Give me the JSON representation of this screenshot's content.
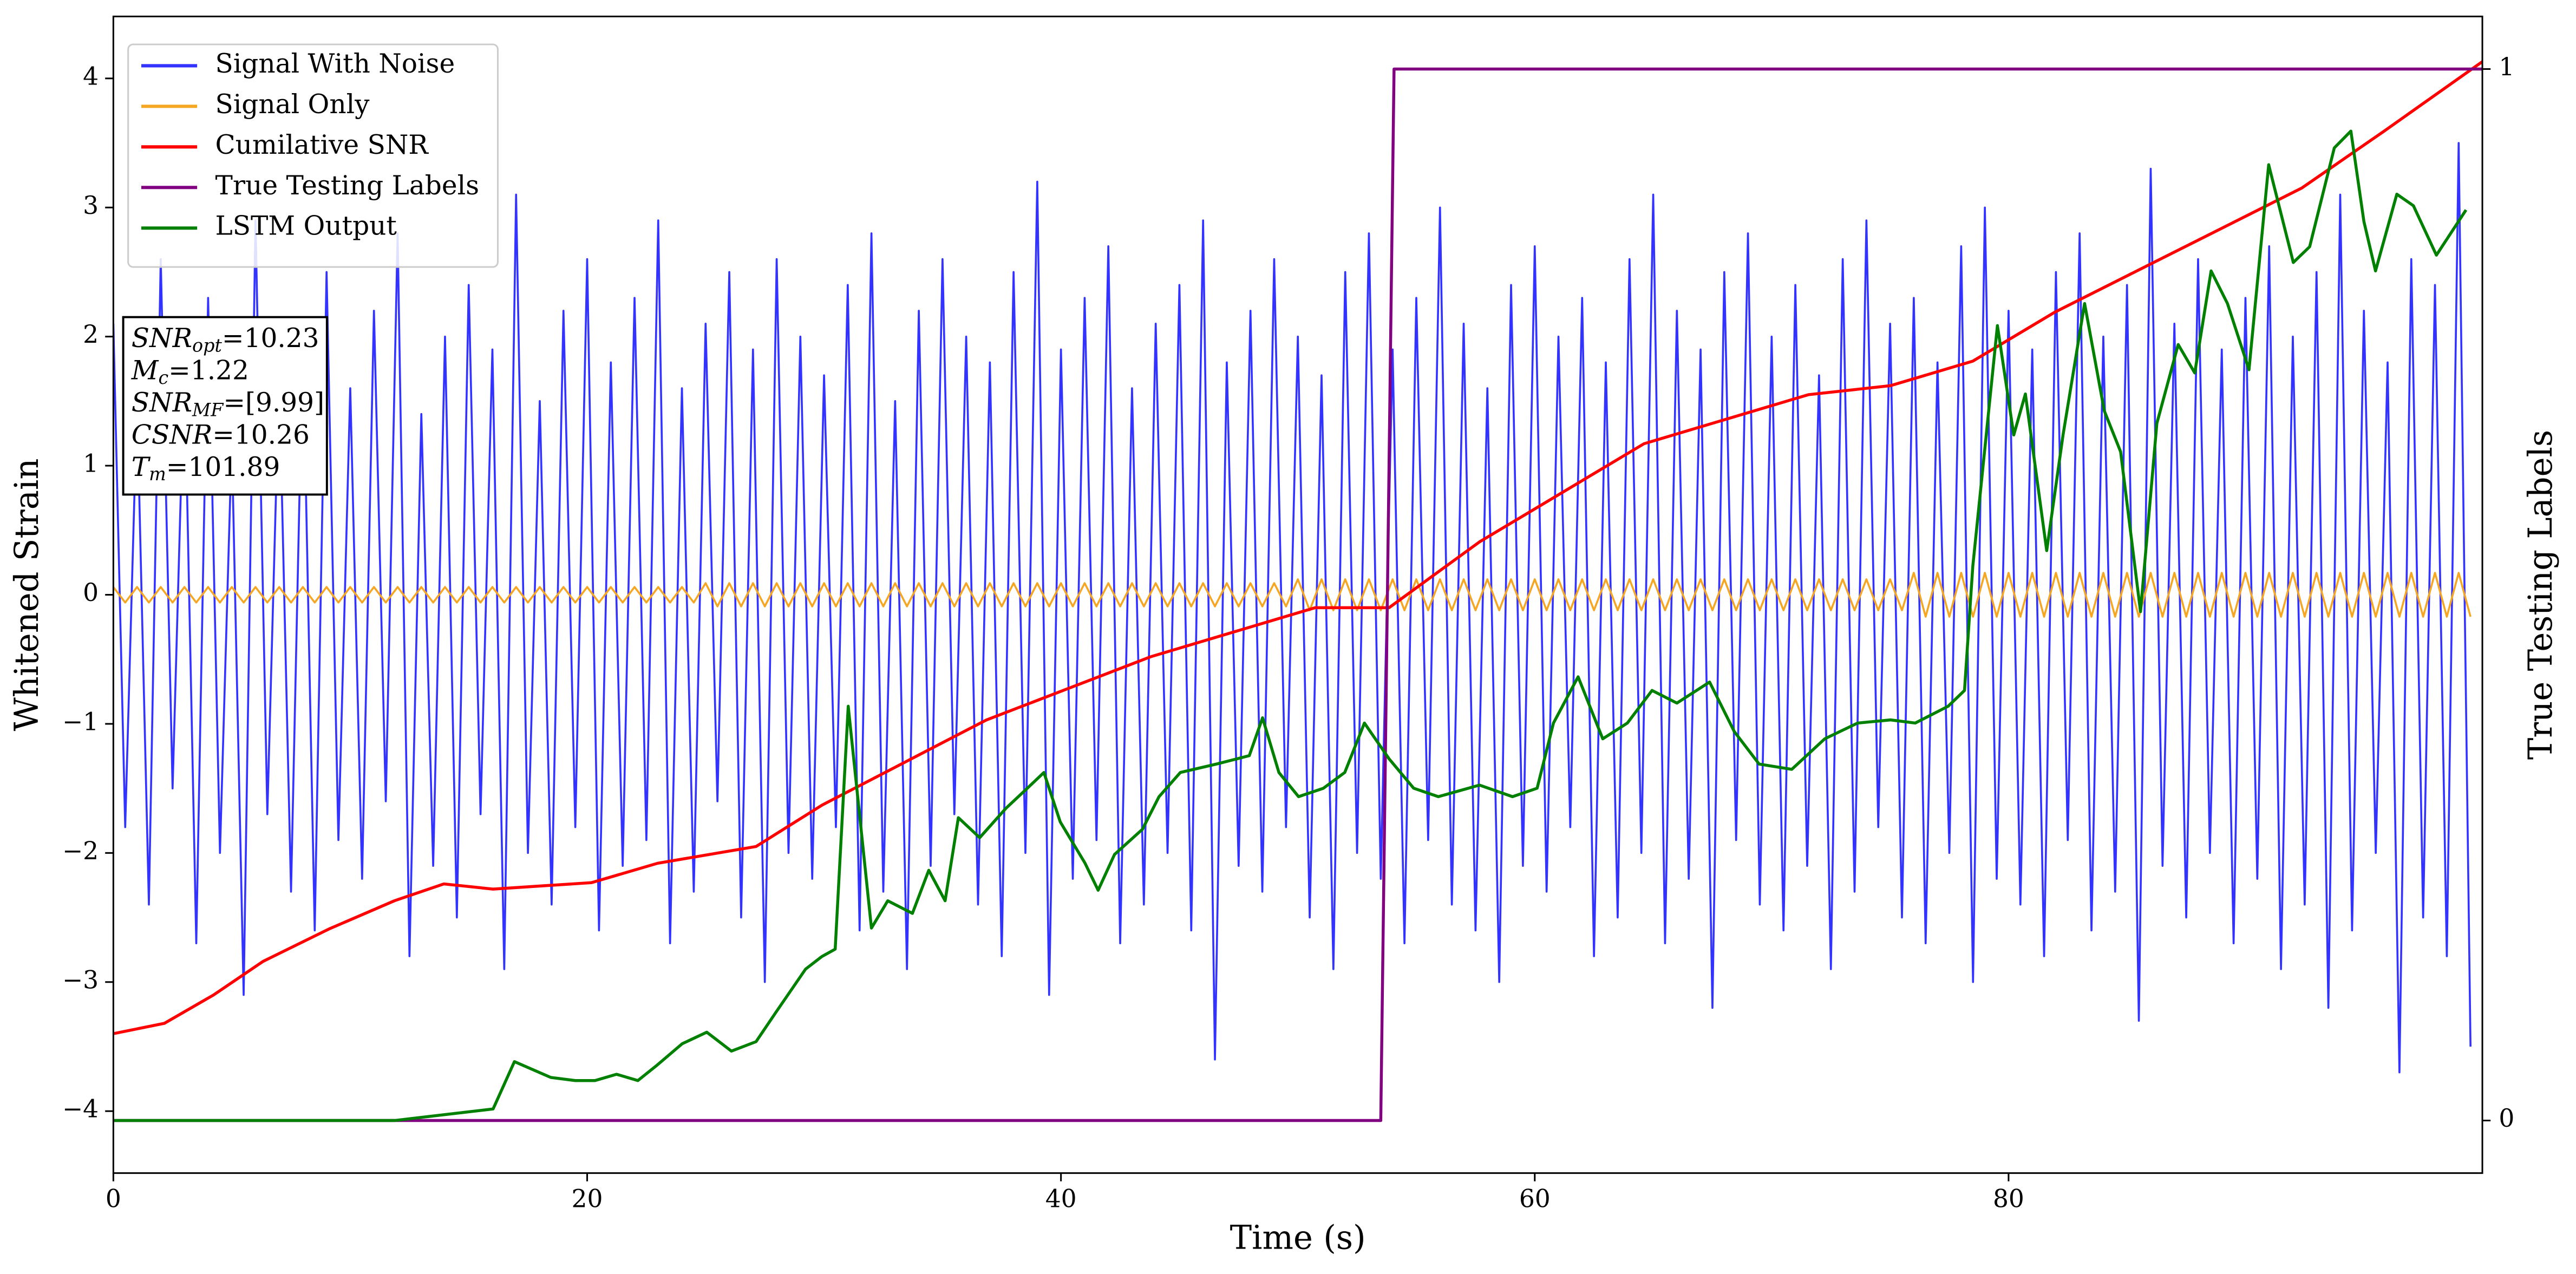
{
  "chart_data": {
    "type": "line",
    "xlabel": "Time (s)",
    "ylabel": "Whitened Strain",
    "y2label": "True Testing Labels",
    "xlim": [
      0,
      100
    ],
    "ylim": [
      -4.48,
      4.48
    ],
    "y2lim": [
      -0.05,
      1.05
    ],
    "xticks": [
      0,
      20,
      40,
      60,
      80
    ],
    "yticks": [
      {
        "value": -4,
        "label": "−4"
      },
      {
        "value": -3,
        "label": "−3"
      },
      {
        "value": -2,
        "label": "−2"
      },
      {
        "value": -1,
        "label": "−1"
      },
      0,
      1,
      2,
      3,
      4
    ],
    "y2ticks": [
      0,
      1
    ],
    "grid": false,
    "legend": "upper left",
    "annotation": [
      {
        "symbol": "SNR",
        "subscript": "opt",
        "text": "=10.23"
      },
      {
        "symbol": "M",
        "subscript": "c",
        "text": "=1.22"
      },
      {
        "symbol": "SNR",
        "subscript": "MF",
        "text": "=[9.99]"
      },
      {
        "symbol": "CSNR",
        "subscript": "",
        "text": "=10.26"
      },
      {
        "symbol": "T",
        "subscript": "m",
        "text": "=101.89"
      }
    ],
    "x": [
      0,
      0.5,
      1,
      1.5,
      2,
      2.5,
      3,
      3.5,
      4,
      4.5,
      5,
      5.5,
      6,
      6.5,
      7,
      7.5,
      8,
      8.5,
      9,
      9.5,
      10,
      10.5,
      11,
      11.5,
      12,
      12.5,
      13,
      13.5,
      14,
      14.5,
      15,
      15.5,
      16,
      16.5,
      17,
      17.5,
      18,
      18.5,
      19,
      19.5,
      20,
      20.5,
      21,
      21.5,
      22,
      22.5,
      23,
      23.5,
      24,
      24.5,
      25,
      25.5,
      26,
      26.5,
      27,
      27.5,
      28,
      28.5,
      29,
      29.5,
      30,
      30.5,
      31,
      31.5,
      32,
      32.5,
      33,
      33.5,
      34,
      34.5,
      35,
      35.5,
      36,
      36.5,
      37,
      37.5,
      38,
      38.5,
      39,
      39.5,
      40,
      40.5,
      41,
      41.5,
      42,
      42.5,
      43,
      43.5,
      44,
      44.5,
      45,
      45.5,
      46,
      46.5,
      47,
      47.5,
      48,
      48.5,
      49,
      49.5,
      50,
      50.5,
      51,
      51.5,
      52,
      52.5,
      53,
      53.5,
      54,
      54.5,
      55,
      55.5,
      56,
      56.5,
      57,
      57.5,
      58,
      58.5,
      59,
      59.5,
      60,
      60.5,
      61,
      61.5,
      62,
      62.5,
      63,
      63.5,
      64,
      64.5,
      65,
      65.5,
      66,
      66.5,
      67,
      67.5,
      68,
      68.5,
      69,
      69.5,
      70,
      70.5,
      71,
      71.5,
      72,
      72.5,
      73,
      73.5,
      74,
      74.5,
      75,
      75.5,
      76,
      76.5,
      77,
      77.5,
      78,
      78.5,
      79,
      79.5,
      80,
      80.5,
      81,
      81.5,
      82,
      82.5,
      83,
      83.5,
      84,
      84.5,
      85,
      85.5,
      86,
      86.5,
      87,
      87.5,
      88,
      88.5,
      89,
      89.5,
      90,
      90.5,
      91,
      91.5,
      92,
      92.5,
      93,
      93.5,
      94,
      94.5,
      95,
      95.5,
      96,
      96.5,
      97,
      97.5,
      98,
      98.5,
      99,
      99.5
    ],
    "series": [
      {
        "name": "Signal With Noise",
        "color": "#3333ff",
        "values": [
          2.1,
          -1.8,
          1.5,
          -2.4,
          2.6,
          -1.5,
          1.8,
          -2.7,
          2.3,
          -2.0,
          1.2,
          -3.1,
          2.9,
          -1.7,
          1.7,
          -2.3,
          2.0,
          -2.6,
          2.5,
          -1.9,
          1.6,
          -2.2,
          2.2,
          -1.6,
          2.8,
          -2.8,
          1.4,
          -2.1,
          2.0,
          -2.5,
          2.4,
          -1.7,
          1.9,
          -2.9,
          3.1,
          -2.0,
          1.5,
          -2.4,
          2.2,
          -1.8,
          2.6,
          -2.6,
          1.8,
          -2.1,
          2.3,
          -1.9,
          2.9,
          -2.7,
          1.6,
          -2.3,
          2.1,
          -1.6,
          2.5,
          -2.5,
          1.9,
          -3.0,
          2.6,
          -2.0,
          2.0,
          -2.2,
          1.7,
          -1.8,
          2.4,
          -2.6,
          2.8,
          -2.3,
          1.5,
          -2.9,
          2.2,
          -2.1,
          2.6,
          -1.7,
          2.0,
          -2.4,
          1.8,
          -2.8,
          2.5,
          -2.0,
          3.2,
          -3.1,
          1.9,
          -2.2,
          2.3,
          -1.9,
          2.7,
          -2.7,
          1.6,
          -2.4,
          2.1,
          -2.0,
          2.4,
          -2.6,
          2.9,
          -3.6,
          1.8,
          -2.1,
          2.2,
          -2.3,
          2.6,
          -1.8,
          2.0,
          -2.5,
          1.7,
          -2.9,
          2.5,
          -2.0,
          2.8,
          -2.2,
          1.9,
          -2.7,
          2.3,
          -1.9,
          3.0,
          -2.4,
          2.1,
          -2.6,
          1.6,
          -3.0,
          2.4,
          -2.1,
          2.7,
          -2.3,
          2.0,
          -1.8,
          2.3,
          -2.8,
          1.8,
          -2.5,
          2.6,
          -2.0,
          3.1,
          -2.7,
          2.2,
          -2.2,
          1.9,
          -3.2,
          2.5,
          -1.9,
          2.8,
          -2.4,
          2.0,
          -2.6,
          2.4,
          -2.1,
          1.7,
          -2.9,
          2.6,
          -2.3,
          2.9,
          -1.8,
          2.1,
          -2.5,
          2.3,
          -2.7,
          1.8,
          -2.0,
          2.7,
          -3.0,
          3.0,
          -2.2,
          2.2,
          -2.4,
          1.9,
          -2.8,
          2.5,
          -1.9,
          2.8,
          -2.6,
          2.0,
          -2.3,
          2.4,
          -3.3,
          3.3,
          -2.1,
          2.1,
          -2.5,
          2.6,
          -2.0,
          1.9,
          -2.7,
          2.3,
          -2.2,
          2.7,
          -2.9,
          2.0,
          -2.4,
          2.5,
          -3.2,
          3.1,
          -2.6,
          2.2,
          -2.0,
          1.8,
          -3.7,
          2.6,
          -2.5,
          2.4,
          -2.8,
          3.5,
          -3.5
        ]
      },
      {
        "name": "Signal Only",
        "color": "#f5a623",
        "values": [
          0.06,
          -0.06,
          0.06,
          -0.06,
          0.06,
          -0.06,
          0.06,
          -0.06,
          0.06,
          -0.06,
          0.06,
          -0.06,
          0.06,
          -0.06,
          0.06,
          -0.06,
          0.06,
          -0.06,
          0.06,
          -0.06,
          0.06,
          -0.06,
          0.06,
          -0.06,
          0.06,
          -0.06,
          0.06,
          -0.06,
          0.06,
          -0.06,
          0.06,
          -0.06,
          0.06,
          -0.06,
          0.06,
          -0.06,
          0.06,
          -0.06,
          0.06,
          -0.06,
          0.06,
          -0.06,
          0.06,
          -0.06,
          0.06,
          -0.06,
          0.06,
          -0.06,
          0.06,
          -0.06,
          0.09,
          -0.09,
          0.09,
          -0.09,
          0.09,
          -0.09,
          0.09,
          -0.09,
          0.09,
          -0.09,
          0.09,
          -0.09,
          0.09,
          -0.09,
          0.09,
          -0.09,
          0.09,
          -0.09,
          0.09,
          -0.09,
          0.09,
          -0.09,
          0.09,
          -0.09,
          0.09,
          -0.09,
          0.09,
          -0.09,
          0.09,
          -0.09,
          0.09,
          -0.09,
          0.09,
          -0.09,
          0.09,
          -0.09,
          0.09,
          -0.09,
          0.09,
          -0.09,
          0.09,
          -0.09,
          0.09,
          -0.09,
          0.09,
          -0.09,
          0.09,
          -0.09,
          0.09,
          -0.09,
          0.12,
          -0.12,
          0.12,
          -0.12,
          0.12,
          -0.12,
          0.12,
          -0.12,
          0.12,
          -0.12,
          0.12,
          -0.12,
          0.12,
          -0.12,
          0.12,
          -0.12,
          0.12,
          -0.12,
          0.12,
          -0.12,
          0.12,
          -0.12,
          0.12,
          -0.12,
          0.12,
          -0.12,
          0.12,
          -0.12,
          0.12,
          -0.12,
          0.12,
          -0.12,
          0.12,
          -0.12,
          0.12,
          -0.12,
          0.12,
          -0.12,
          0.12,
          -0.12,
          0.12,
          -0.12,
          0.12,
          -0.12,
          0.12,
          -0.12,
          0.12,
          -0.12,
          0.12,
          -0.12,
          0.12,
          -0.12,
          0.17,
          -0.17,
          0.17,
          -0.17,
          0.17,
          -0.17,
          0.17,
          -0.17,
          0.17,
          -0.17,
          0.17,
          -0.17,
          0.17,
          -0.17,
          0.17,
          -0.17,
          0.17,
          -0.17,
          0.17,
          -0.17,
          0.17,
          -0.17,
          0.17,
          -0.17,
          0.17,
          -0.17,
          0.17,
          -0.17,
          0.17,
          -0.17,
          0.17,
          -0.17,
          0.17,
          -0.17,
          0.17,
          -0.17,
          0.17,
          -0.17,
          0.17,
          -0.17,
          0.17,
          -0.17,
          0.17,
          -0.17,
          0.17,
          -0.17,
          0.17,
          -0.17
        ]
      },
      {
        "name": "Cumilative SNR",
        "color": "#ff0000",
        "x": [
          0,
          2.15,
          4.23,
          6.32,
          9.09,
          11.87,
          13.95,
          16.03,
          20.19,
          22.97,
          27.13,
          29.91,
          36.85,
          43.79,
          50.73,
          53.85,
          57.67,
          64.61,
          71.55,
          75.02,
          78.49,
          81.96,
          85.43,
          88.9,
          92.37,
          95.84,
          100
        ],
        "values": [
          -3.4,
          -3.32,
          -3.1,
          -2.84,
          -2.59,
          -2.37,
          -2.24,
          -2.28,
          -2.23,
          -2.08,
          -1.95,
          -1.63,
          -0.97,
          -0.48,
          -0.1,
          -0.1,
          0.41,
          1.17,
          1.55,
          1.62,
          1.81,
          2.19,
          2.51,
          2.83,
          3.15,
          3.59,
          4.13
        ]
      },
      {
        "name": "True Testing Labels",
        "color": "#800080",
        "axis": "y2",
        "x": [
          0,
          53.5,
          54.06,
          100
        ],
        "values": [
          0,
          0,
          1,
          1
        ]
      },
      {
        "name": "LSTM Output",
        "color": "#008000",
        "axis": "y2",
        "x": [
          0,
          11.87,
          16.03,
          16.93,
          18.46,
          19.5,
          20.33,
          21.24,
          22.14,
          22.97,
          24.01,
          25.05,
          26.09,
          27.13,
          27.97,
          29.22,
          29.91,
          30.47,
          31.02,
          32.0,
          32.69,
          33.73,
          34.42,
          35.11,
          35.67,
          36.57,
          37.68,
          38.58,
          39.28,
          39.97,
          41.01,
          41.57,
          42.26,
          43.44,
          44.14,
          45.04,
          46.56,
          47.95,
          48.51,
          49.2,
          50.03,
          51.08,
          51.98,
          52.81,
          53.85,
          54.89,
          55.93,
          57.67,
          59.06,
          60.1,
          60.79,
          61.83,
          62.87,
          63.91,
          64.95,
          66.0,
          67.38,
          68.42,
          69.47,
          70.85,
          72.24,
          73.63,
          75.02,
          76.06,
          77.45,
          78.14,
          78.49,
          79.53,
          80.22,
          80.71,
          81.61,
          82.3,
          83.21,
          84.04,
          84.73,
          85.57,
          86.26,
          87.16,
          87.86,
          88.55,
          89.24,
          90.15,
          90.98,
          92.02,
          92.71,
          93.75,
          94.45,
          95.0,
          95.49,
          96.39,
          97.09,
          98.06,
          99.31
        ],
        "values": [
          0,
          0,
          0.011,
          0.056,
          0.041,
          0.038,
          0.038,
          0.044,
          0.038,
          0.053,
          0.073,
          0.084,
          0.066,
          0.075,
          0.103,
          0.144,
          0.156,
          0.163,
          0.394,
          0.183,
          0.209,
          0.197,
          0.238,
          0.209,
          0.288,
          0.269,
          0.297,
          0.316,
          0.331,
          0.284,
          0.245,
          0.219,
          0.253,
          0.277,
          0.308,
          0.331,
          0.339,
          0.347,
          0.383,
          0.331,
          0.308,
          0.316,
          0.331,
          0.378,
          0.344,
          0.316,
          0.308,
          0.319,
          0.308,
          0.316,
          0.378,
          0.422,
          0.363,
          0.378,
          0.409,
          0.397,
          0.417,
          0.37,
          0.339,
          0.334,
          0.363,
          0.378,
          0.381,
          0.378,
          0.394,
          0.409,
          0.527,
          0.756,
          0.652,
          0.691,
          0.542,
          0.652,
          0.777,
          0.675,
          0.636,
          0.484,
          0.663,
          0.738,
          0.711,
          0.808,
          0.777,
          0.714,
          0.909,
          0.816,
          0.831,
          0.925,
          0.941,
          0.855,
          0.808,
          0.881,
          0.87,
          0.823,
          0.866
        ]
      }
    ]
  }
}
